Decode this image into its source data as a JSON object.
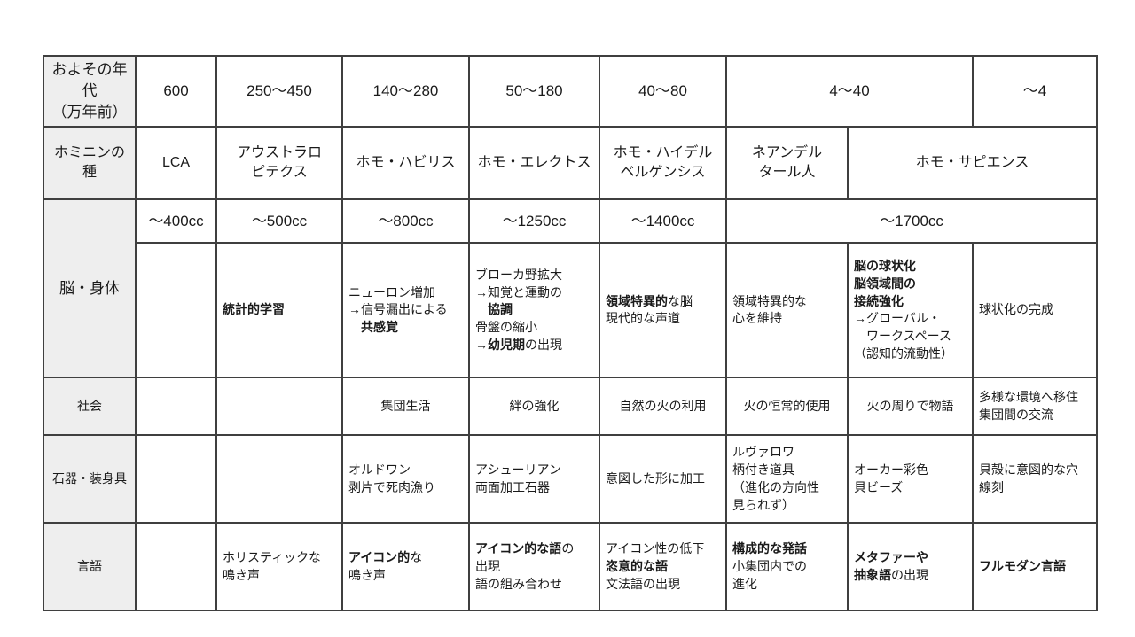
{
  "colors": {
    "page_bg": "#ffffff",
    "border": "#3f3f3f",
    "label_bg": "#eeeeee",
    "text": "#1a1a1a"
  },
  "table": {
    "rows": [
      {
        "name": "years",
        "cls": "r-years",
        "cells": [
          {
            "n": "row-label-years",
            "h": 1,
            "s": [
              [
                {
                  "t": "およその年代"
                }
              ],
              [
                {
                  "t": "（万年前）"
                }
              ]
            ]
          },
          {
            "n": "year-cell",
            "s": [
              [
                {
                  "t": "600"
                }
              ]
            ]
          },
          {
            "n": "year-cell",
            "s": [
              [
                {
                  "t": "250〜450"
                }
              ]
            ]
          },
          {
            "n": "year-cell",
            "s": [
              [
                {
                  "t": "140〜280"
                }
              ]
            ]
          },
          {
            "n": "year-cell",
            "s": [
              [
                {
                  "t": "50〜180"
                }
              ]
            ]
          },
          {
            "n": "year-cell",
            "s": [
              [
                {
                  "t": "40〜80"
                }
              ]
            ]
          },
          {
            "n": "year-cell",
            "cs": 2,
            "s": [
              [
                {
                  "t": "4〜40"
                }
              ]
            ]
          },
          {
            "n": "year-cell",
            "s": [
              [
                {
                  "t": "〜4"
                }
              ]
            ]
          }
        ]
      },
      {
        "name": "species",
        "cls": "r-species",
        "cells": [
          {
            "n": "row-label-species",
            "h": 1,
            "s": [
              [
                {
                  "t": "ホミニンの種"
                }
              ]
            ]
          },
          {
            "n": "species-cell",
            "s": [
              [
                {
                  "t": "LCA"
                }
              ]
            ]
          },
          {
            "n": "species-cell",
            "s": [
              [
                {
                  "t": "アウストラロ"
                }
              ],
              [
                {
                  "t": "ピテクス"
                }
              ]
            ]
          },
          {
            "n": "species-cell",
            "s": [
              [
                {
                  "t": "ホモ・ハビリス"
                }
              ]
            ]
          },
          {
            "n": "species-cell",
            "s": [
              [
                {
                  "t": "ホモ・エレクトス"
                }
              ]
            ]
          },
          {
            "n": "species-cell",
            "s": [
              [
                {
                  "t": "ホモ・ハイデル"
                }
              ],
              [
                {
                  "t": "ベルゲンシス"
                }
              ]
            ]
          },
          {
            "n": "species-cell",
            "s": [
              [
                {
                  "t": "ネアンデル"
                }
              ],
              [
                {
                  "t": "タール人"
                }
              ]
            ]
          },
          {
            "n": "species-cell",
            "cs": 2,
            "s": [
              [
                {
                  "t": "ホモ・サピエンス"
                }
              ]
            ]
          }
        ]
      },
      {
        "name": "brain-cc",
        "cls": "r-cc",
        "cells": [
          {
            "n": "row-label-brain-body",
            "h": 1,
            "rs": 2,
            "s": [
              [
                {
                  "t": "脳・身体"
                }
              ]
            ]
          },
          {
            "n": "cc-cell",
            "s": [
              [
                {
                  "t": "〜400cc"
                }
              ]
            ]
          },
          {
            "n": "cc-cell",
            "s": [
              [
                {
                  "t": "〜500cc"
                }
              ]
            ]
          },
          {
            "n": "cc-cell",
            "s": [
              [
                {
                  "t": "〜800cc"
                }
              ]
            ]
          },
          {
            "n": "cc-cell",
            "s": [
              [
                {
                  "t": "〜1250cc"
                }
              ]
            ]
          },
          {
            "n": "cc-cell",
            "s": [
              [
                {
                  "t": "〜1400cc"
                }
              ]
            ]
          },
          {
            "n": "cc-cell",
            "cs": 3,
            "s": [
              [
                {
                  "t": "〜1700cc"
                }
              ]
            ]
          }
        ]
      },
      {
        "name": "brain-detail",
        "cls": "r-body",
        "cells": [
          {
            "n": "empty-cell",
            "s": []
          },
          {
            "n": "brain-cell",
            "al": "l",
            "s": [
              [
                {
                  "t": "統計的学習",
                  "b": 1
                }
              ]
            ]
          },
          {
            "n": "brain-cell",
            "al": "l",
            "s": [
              [
                {
                  "t": "ニューロン増加"
                }
              ],
              [
                {
                  "t": "→信号漏出による"
                }
              ],
              [
                {
                  "t": "　"
                },
                {
                  "t": "共感覚",
                  "b": 1
                }
              ]
            ]
          },
          {
            "n": "brain-cell",
            "al": "l",
            "s": [
              [
                {
                  "t": "ブローカ野拡大"
                }
              ],
              [
                {
                  "t": "→知覚と運動の"
                }
              ],
              [
                {
                  "t": "　"
                },
                {
                  "t": "協調",
                  "b": 1
                }
              ],
              [
                {
                  "t": "骨盤の縮小"
                }
              ],
              [
                {
                  "t": "→"
                },
                {
                  "t": "幼児期",
                  "b": 1
                },
                {
                  "t": "の出現"
                }
              ]
            ]
          },
          {
            "n": "brain-cell",
            "al": "l",
            "s": [
              [
                {
                  "t": "領域特異的",
                  "b": 1
                },
                {
                  "t": "な脳"
                }
              ],
              [
                {
                  "t": "現代的な声道"
                }
              ]
            ]
          },
          {
            "n": "brain-cell",
            "al": "l",
            "s": [
              [
                {
                  "t": "領域特異的な"
                }
              ],
              [
                {
                  "t": "心を維持"
                }
              ]
            ]
          },
          {
            "n": "brain-cell",
            "al": "l",
            "s": [
              [
                {
                  "t": "脳の球状化",
                  "b": 1
                }
              ],
              [
                {
                  "t": "脳領域間の",
                  "b": 1
                }
              ],
              [
                {
                  "t": "接続強化",
                  "b": 1
                }
              ],
              [
                {
                  "t": "→グローバル・"
                }
              ],
              [
                {
                  "t": "　ワークスペース"
                }
              ],
              [
                {
                  "t": "（認知的流動性）"
                }
              ]
            ]
          },
          {
            "n": "brain-cell",
            "al": "l",
            "s": [
              [
                {
                  "t": "球状化の完成"
                }
              ]
            ]
          }
        ]
      },
      {
        "name": "society",
        "cls": "r-society",
        "cells": [
          {
            "n": "row-label-society",
            "h": 1,
            "s": [
              [
                {
                  "t": "社会"
                }
              ]
            ]
          },
          {
            "n": "empty-cell",
            "s": []
          },
          {
            "n": "empty-cell",
            "s": []
          },
          {
            "n": "society-cell",
            "s": [
              [
                {
                  "t": "集団生活"
                }
              ]
            ]
          },
          {
            "n": "society-cell",
            "s": [
              [
                {
                  "t": "絆の強化"
                }
              ]
            ]
          },
          {
            "n": "society-cell",
            "s": [
              [
                {
                  "t": "自然の火の利用"
                }
              ]
            ]
          },
          {
            "n": "society-cell",
            "s": [
              [
                {
                  "t": "火の恒常的使用"
                }
              ]
            ]
          },
          {
            "n": "society-cell",
            "s": [
              [
                {
                  "t": "火の周りで物語"
                }
              ]
            ]
          },
          {
            "n": "society-cell",
            "al": "l",
            "s": [
              [
                {
                  "t": "多様な環境へ移住"
                }
              ],
              [
                {
                  "t": "集団間の交流"
                }
              ]
            ]
          }
        ]
      },
      {
        "name": "tools-ornaments",
        "cls": "r-tools",
        "cells": [
          {
            "n": "row-label-tools",
            "h": 1,
            "s": [
              [
                {
                  "t": "石器・装身具"
                }
              ]
            ]
          },
          {
            "n": "empty-cell",
            "s": []
          },
          {
            "n": "empty-cell",
            "s": []
          },
          {
            "n": "tools-cell",
            "al": "l",
            "s": [
              [
                {
                  "t": "オルドワン"
                }
              ],
              [
                {
                  "t": "剥片で死肉漁り"
                }
              ]
            ]
          },
          {
            "n": "tools-cell",
            "al": "l",
            "s": [
              [
                {
                  "t": "アシューリアン"
                }
              ],
              [
                {
                  "t": "両面加工石器"
                }
              ]
            ]
          },
          {
            "n": "tools-cell",
            "al": "l",
            "s": [
              [
                {
                  "t": "意図した形に加工"
                }
              ]
            ]
          },
          {
            "n": "tools-cell",
            "al": "l",
            "s": [
              [
                {
                  "t": "ルヴァロワ"
                }
              ],
              [
                {
                  "t": "柄付き道具"
                }
              ],
              [
                {
                  "t": "（進化の方向性"
                }
              ],
              [
                {
                  "t": "見られず）"
                }
              ]
            ]
          },
          {
            "n": "tools-cell",
            "al": "l",
            "s": [
              [
                {
                  "t": "オーカー彩色"
                }
              ],
              [
                {
                  "t": "貝ビーズ"
                }
              ]
            ]
          },
          {
            "n": "tools-cell",
            "al": "l",
            "s": [
              [
                {
                  "t": "貝殻に意図的な穴"
                }
              ],
              [
                {
                  "t": "線刻"
                }
              ]
            ]
          }
        ]
      },
      {
        "name": "language",
        "cls": "r-lang",
        "cells": [
          {
            "n": "row-label-language",
            "h": 1,
            "s": [
              [
                {
                  "t": "言語"
                }
              ]
            ]
          },
          {
            "n": "empty-cell",
            "s": []
          },
          {
            "n": "language-cell",
            "al": "l",
            "s": [
              [
                {
                  "t": "ホリスティックな"
                }
              ],
              [
                {
                  "t": "鳴き声"
                }
              ]
            ]
          },
          {
            "n": "language-cell",
            "al": "l",
            "s": [
              [
                {
                  "t": "アイコン的",
                  "b": 1
                },
                {
                  "t": "な"
                }
              ],
              [
                {
                  "t": "鳴き声"
                }
              ]
            ]
          },
          {
            "n": "language-cell",
            "al": "l",
            "s": [
              [
                {
                  "t": "アイコン的な語",
                  "b": 1
                },
                {
                  "t": "の"
                }
              ],
              [
                {
                  "t": "出現"
                }
              ],
              [
                {
                  "t": "語の組み合わせ"
                }
              ]
            ]
          },
          {
            "n": "language-cell",
            "al": "l",
            "s": [
              [
                {
                  "t": "アイコン性の低下"
                }
              ],
              [
                {
                  "t": "恣意的な語",
                  "b": 1
                }
              ],
              [
                {
                  "t": "文法語の出現"
                }
              ]
            ]
          },
          {
            "n": "language-cell",
            "al": "l",
            "s": [
              [
                {
                  "t": "構成的な発話",
                  "b": 1
                }
              ],
              [
                {
                  "t": "小集団内での"
                }
              ],
              [
                {
                  "t": "進化"
                }
              ]
            ]
          },
          {
            "n": "language-cell",
            "al": "l",
            "s": [
              [
                {
                  "t": "メタファーや",
                  "b": 1
                }
              ],
              [
                {
                  "t": "抽象語",
                  "b": 1
                },
                {
                  "t": "の出現"
                }
              ]
            ]
          },
          {
            "n": "language-cell",
            "al": "l",
            "s": [
              [
                {
                  "t": "フルモダン言語",
                  "b": 1
                }
              ]
            ]
          }
        ]
      }
    ]
  }
}
